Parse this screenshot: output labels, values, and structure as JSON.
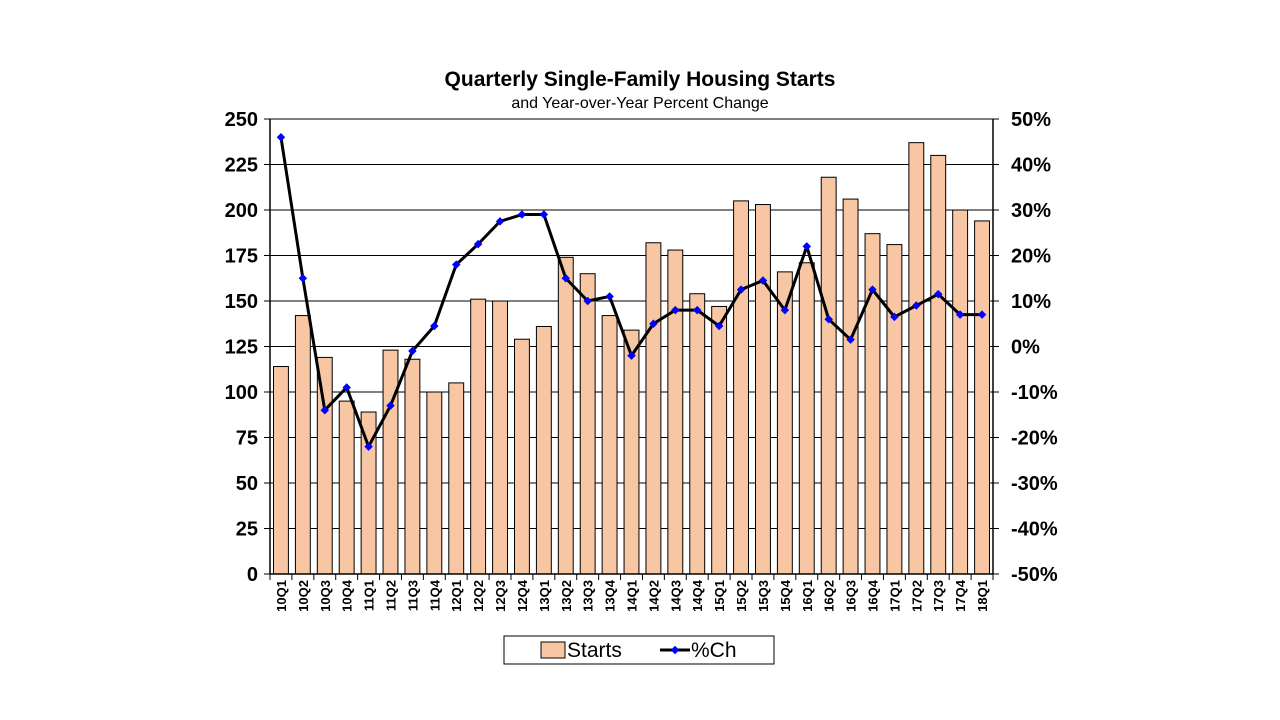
{
  "chart_data": {
    "type": "bar",
    "title": "Quarterly Single-Family Housing Starts",
    "subtitle": "and Year-over-Year Percent Change",
    "categories": [
      "10Q1",
      "10Q2",
      "10Q3",
      "10Q4",
      "11Q1",
      "11Q2",
      "11Q3",
      "11Q4",
      "12Q1",
      "12Q2",
      "12Q3",
      "12Q4",
      "13Q1",
      "13Q2",
      "13Q3",
      "13Q4",
      "14Q1",
      "14Q2",
      "14Q3",
      "14Q4",
      "15Q1",
      "15Q2",
      "15Q3",
      "15Q4",
      "16Q1",
      "16Q2",
      "16Q3",
      "16Q4",
      "17Q1",
      "17Q2",
      "17Q3",
      "17Q4",
      "18Q1"
    ],
    "series": [
      {
        "name": "Starts",
        "type": "bar",
        "axis": "left",
        "color": "#f7c6a3",
        "values": [
          114,
          142,
          119,
          95,
          89,
          123,
          118,
          100,
          105,
          151,
          150,
          129,
          136,
          174,
          165,
          142,
          134,
          182,
          178,
          154,
          147,
          205,
          203,
          166,
          171,
          218,
          206,
          187,
          181,
          237,
          230,
          200,
          194
        ]
      },
      {
        "name": "%Ch",
        "type": "line",
        "axis": "right",
        "color": "#000000",
        "marker_color": "#0000ff",
        "values": [
          46,
          15,
          -14,
          -9,
          -22,
          -13,
          -1,
          4.5,
          18,
          22.5,
          27.5,
          29,
          29,
          15,
          10,
          11,
          -2,
          5,
          8,
          8,
          4.5,
          12.5,
          14.5,
          8,
          22,
          6,
          1.5,
          12.5,
          6.5,
          9,
          11.5,
          7,
          7
        ]
      }
    ],
    "y_left": {
      "min": 0,
      "max": 250,
      "step": 25,
      "ticks": [
        "0",
        "25",
        "50",
        "75",
        "100",
        "125",
        "150",
        "175",
        "200",
        "225",
        "250"
      ]
    },
    "y_right": {
      "min": -50,
      "max": 50,
      "step": 10,
      "ticks": [
        "-50%",
        "-40%",
        "-30%",
        "-20%",
        "-10%",
        "0%",
        "10%",
        "20%",
        "30%",
        "40%",
        "50%"
      ]
    },
    "grid": true,
    "legend": {
      "position": "bottom",
      "items": [
        "Starts",
        "%Ch"
      ]
    }
  }
}
